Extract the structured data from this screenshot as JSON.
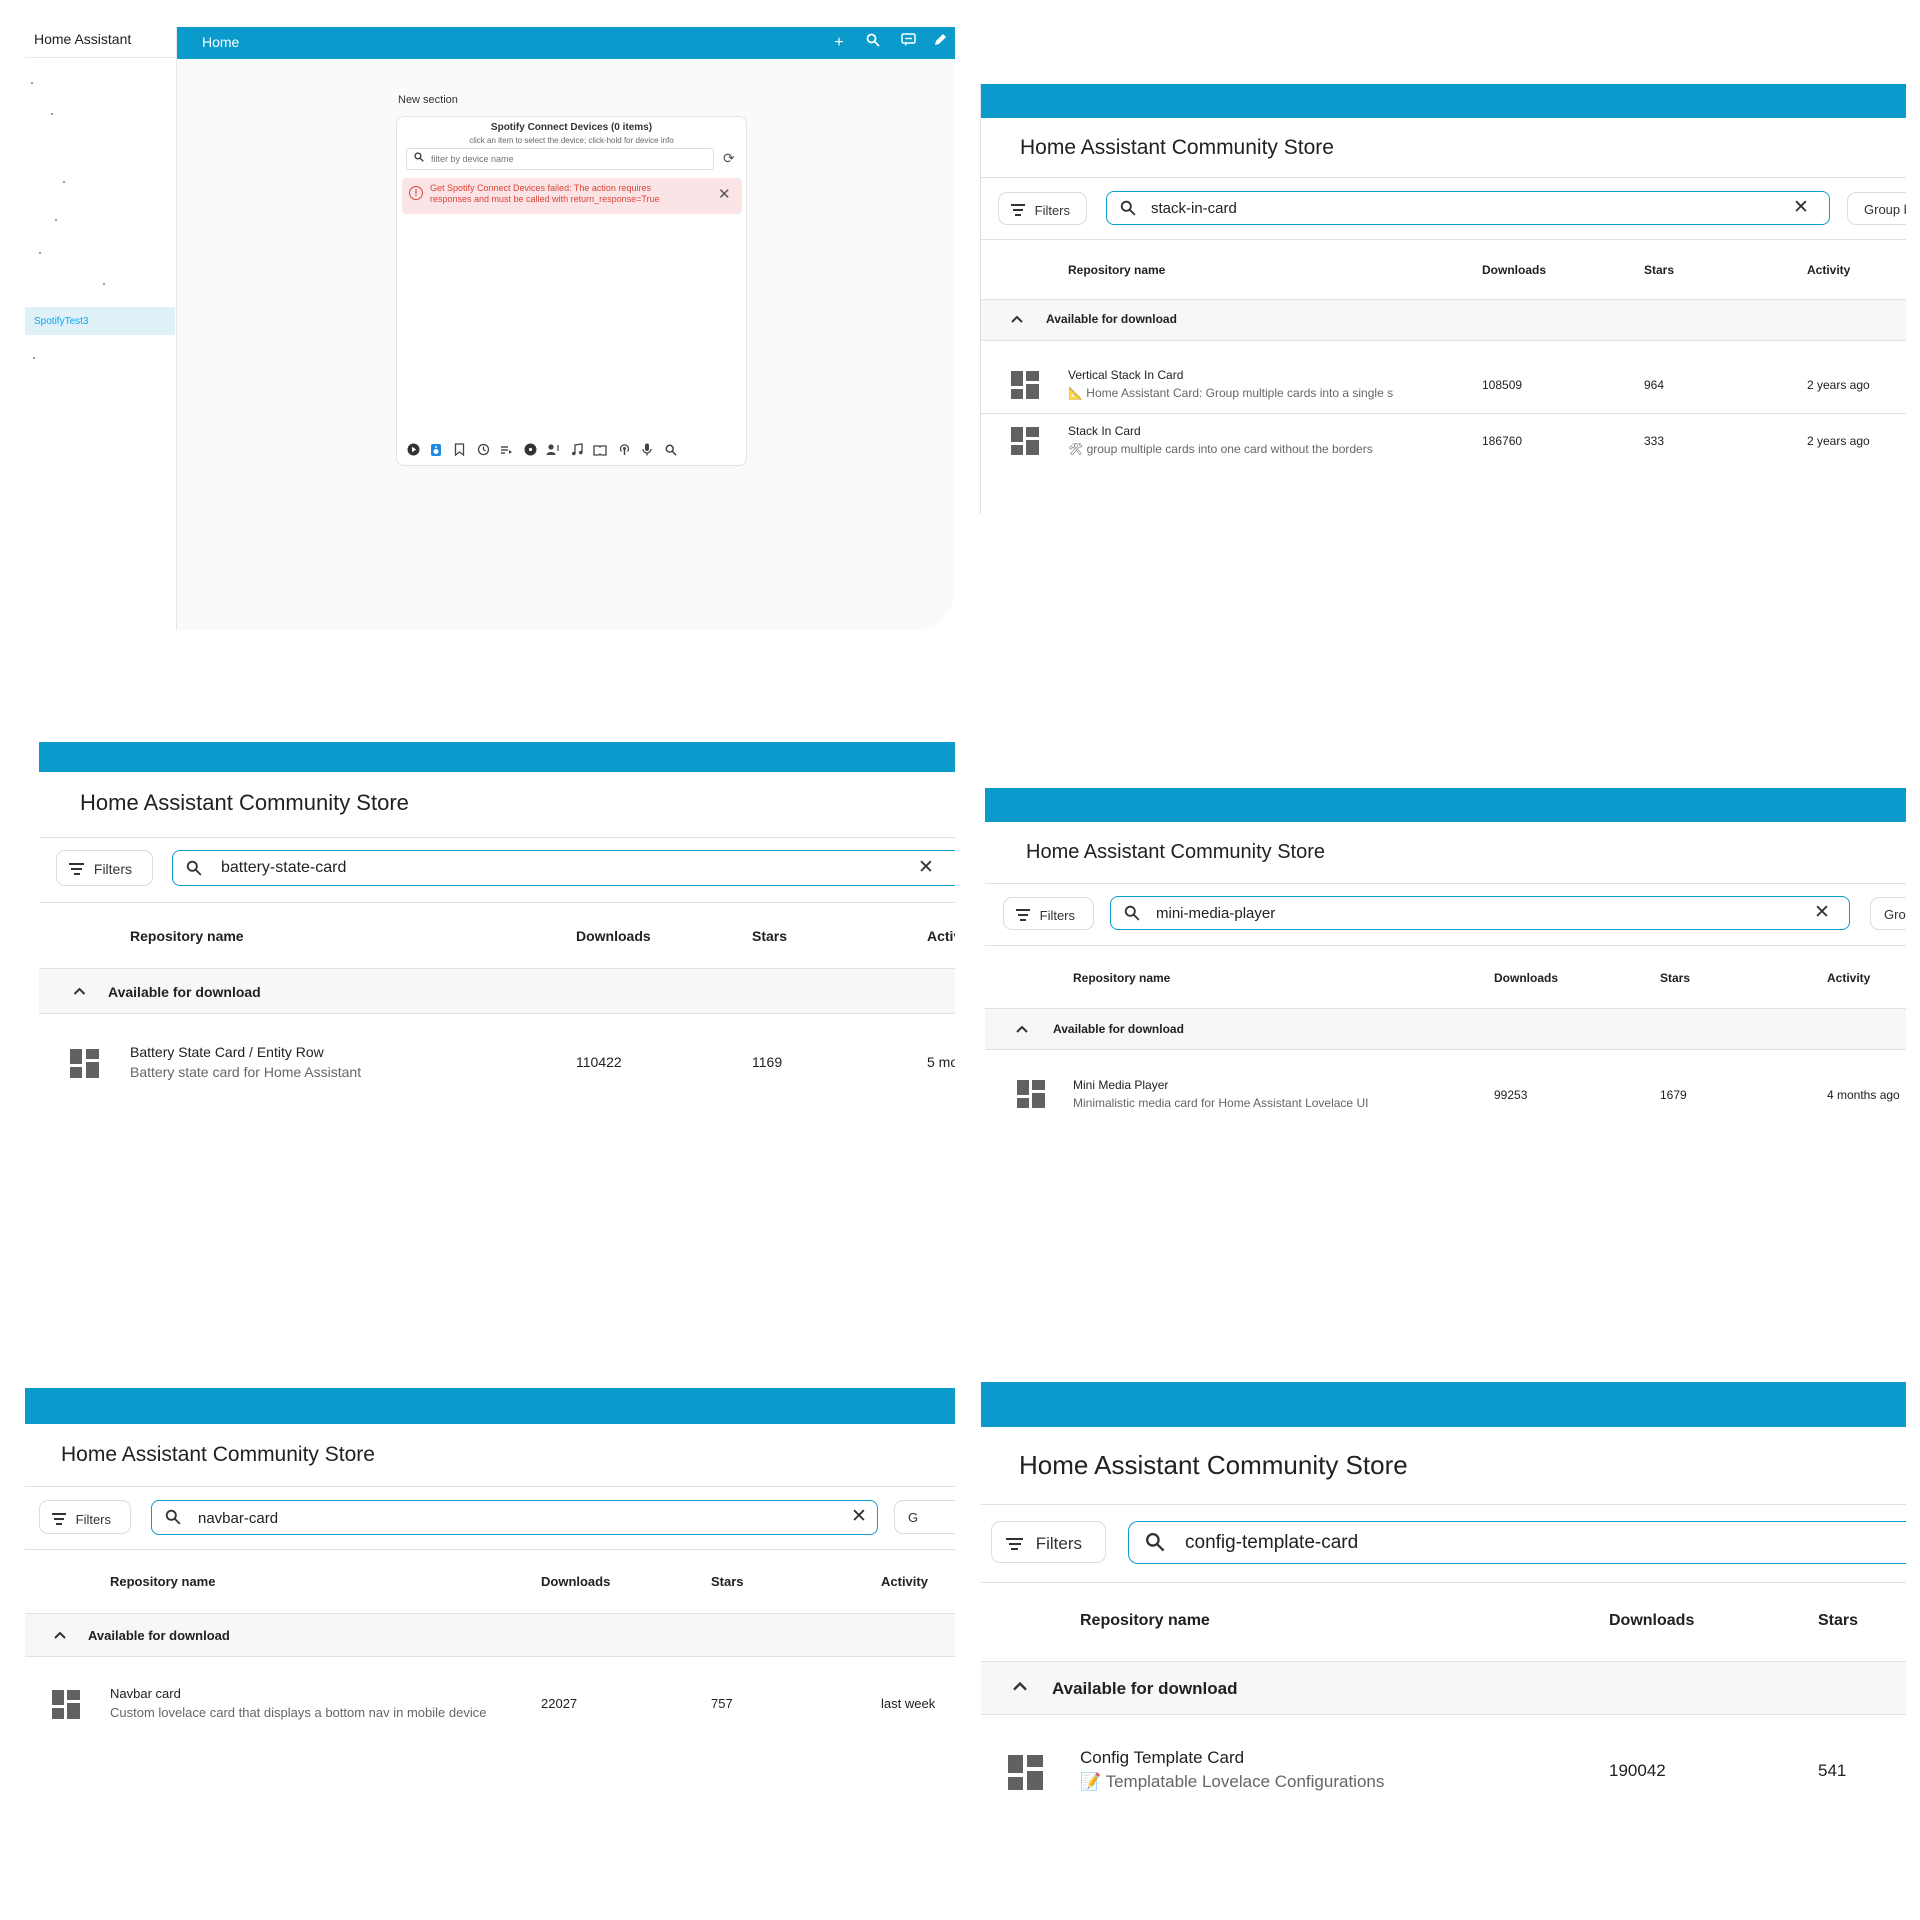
{
  "dashboard": {
    "app_title": "Home Assistant",
    "page_title": "Home",
    "sidebar_selected": "SpotifyTest3",
    "section_title": "New section",
    "card": {
      "title": "Spotify Connect Devices (0 items)",
      "subtitle": "click an item to select the device; click-hold for device info",
      "filter_placeholder": "filter by device name",
      "error_text": "Get Spotify Connect Devices failed: The action requires responses and must be called with return_response=True"
    },
    "topbar_icons": [
      "plus-icon",
      "search-icon",
      "assist-icon",
      "pencil-icon"
    ],
    "toolbar_icons": [
      "player-icon",
      "devices-icon",
      "bookmark-icon",
      "history-icon",
      "playlist-icon",
      "album-icon",
      "artist-icon",
      "track-icon",
      "show-icon",
      "podcast-icon",
      "microphone-icon",
      "search-icon"
    ]
  },
  "hacs_common": {
    "store_title": "Home Assistant Community Store",
    "filters_label": "Filters",
    "group_label": "Group by",
    "col_name": "Repository name",
    "col_downloads": "Downloads",
    "col_stars": "Stars",
    "col_activity": "Activity",
    "group_header": "Available for download"
  },
  "panels": {
    "stack": {
      "search_value": "stack-in-card",
      "rows": [
        {
          "name": "Vertical Stack In Card",
          "desc": "📐 Home Assistant Card: Group multiple cards into a single sleek",
          "downloads": "108509",
          "stars": "964",
          "activity": "2 years ago"
        },
        {
          "name": "Stack In Card",
          "desc": "🛠 group multiple cards into one card without the borders",
          "downloads": "186760",
          "stars": "333",
          "activity": "2 years ago"
        }
      ]
    },
    "battery": {
      "search_value": "battery-state-card",
      "activity_col": "Activ",
      "rows": [
        {
          "name": "Battery State Card / Entity Row",
          "desc": "Battery state card for Home Assistant",
          "downloads": "110422",
          "stars": "1169",
          "activity": "5 mo"
        }
      ]
    },
    "mini": {
      "search_value": "mini-media-player",
      "group_label": "Gro",
      "rows": [
        {
          "name": "Mini Media Player",
          "desc": "Minimalistic media card for Home Assistant Lovelace UI",
          "downloads": "99253",
          "stars": "1679",
          "activity": "4 months ago"
        }
      ]
    },
    "navbar": {
      "search_value": "navbar-card",
      "group_label": "G",
      "rows": [
        {
          "name": "Navbar card",
          "desc": "Custom lovelace card that displays a bottom nav in mobile device",
          "downloads": "22027",
          "stars": "757",
          "activity": "last week"
        }
      ]
    },
    "config": {
      "search_value": "config-template-card",
      "rows": [
        {
          "name": "Config Template Card",
          "desc": "📝 Templatable Lovelace Configurations",
          "downloads": "190042",
          "stars": "541"
        }
      ]
    }
  }
}
